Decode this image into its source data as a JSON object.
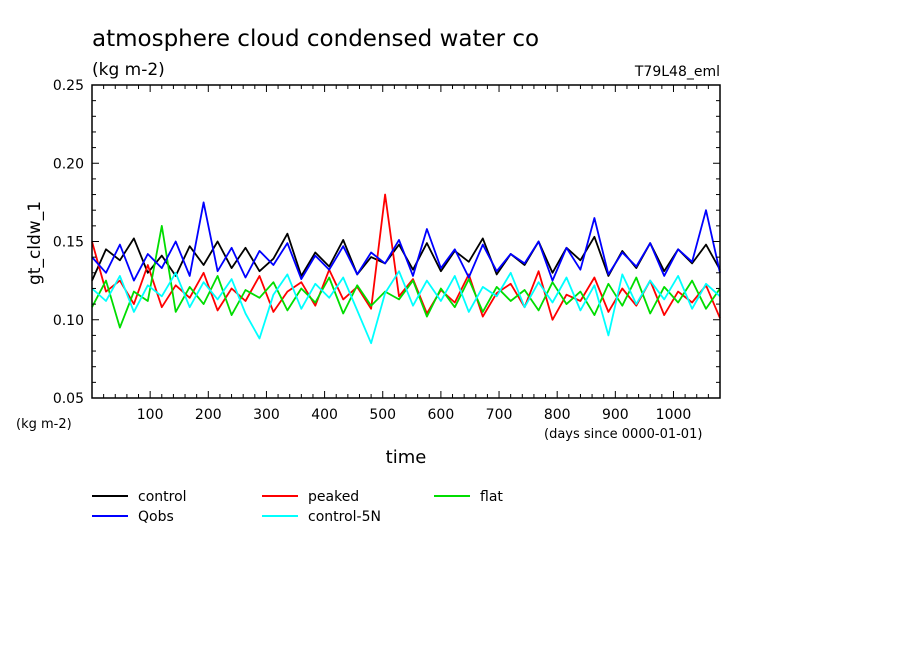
{
  "chart_data": {
    "type": "line",
    "title": "atmosphere cloud condensed water co",
    "subtitle": "(kg m-2)",
    "run_label": "T79L48_eml",
    "ylabel": "gt_cldw_1",
    "y_unit_label": "(kg m-2)",
    "xlabel": "time",
    "x_unit_label": "(days since 0000-01-01)",
    "xlim": [
      0,
      1080
    ],
    "ylim": [
      0.05,
      0.25
    ],
    "x_ticks": [
      100,
      200,
      300,
      400,
      500,
      600,
      700,
      800,
      900,
      1000
    ],
    "y_ticks": [
      "0.05",
      "0.10",
      "0.15",
      "0.20",
      "0.25"
    ],
    "grid": false,
    "legend_position": "below-plot",
    "series": [
      {
        "name": "control",
        "color": "#000000",
        "x": [
          0,
          24,
          48,
          72,
          96,
          120,
          144,
          168,
          192,
          216,
          240,
          264,
          288,
          312,
          336,
          360,
          384,
          408,
          432,
          456,
          480,
          504,
          528,
          552,
          576,
          600,
          624,
          648,
          672,
          696,
          720,
          744,
          768,
          792,
          816,
          840,
          864,
          888,
          912,
          936,
          960,
          984,
          1008,
          1032,
          1056,
          1080
        ],
        "values": [
          0.125,
          0.145,
          0.138,
          0.152,
          0.13,
          0.141,
          0.128,
          0.147,
          0.135,
          0.15,
          0.133,
          0.146,
          0.131,
          0.139,
          0.155,
          0.128,
          0.143,
          0.134,
          0.151,
          0.129,
          0.14,
          0.136,
          0.148,
          0.132,
          0.149,
          0.131,
          0.144,
          0.137,
          0.152,
          0.129,
          0.142,
          0.135,
          0.15,
          0.13,
          0.146,
          0.138,
          0.153,
          0.128,
          0.144,
          0.133,
          0.149,
          0.131,
          0.145,
          0.136,
          0.148,
          0.132
        ]
      },
      {
        "name": "peaked",
        "color": "#ff0000",
        "x": [
          0,
          24,
          48,
          72,
          96,
          120,
          144,
          168,
          192,
          216,
          240,
          264,
          288,
          312,
          336,
          360,
          384,
          408,
          432,
          456,
          480,
          504,
          528,
          552,
          576,
          600,
          624,
          648,
          672,
          696,
          720,
          744,
          768,
          792,
          816,
          840,
          864,
          888,
          912,
          936,
          960,
          984,
          1008,
          1032,
          1056,
          1080
        ],
        "values": [
          0.15,
          0.118,
          0.125,
          0.11,
          0.135,
          0.108,
          0.122,
          0.114,
          0.13,
          0.106,
          0.12,
          0.112,
          0.128,
          0.105,
          0.118,
          0.124,
          0.109,
          0.132,
          0.113,
          0.121,
          0.107,
          0.18,
          0.115,
          0.126,
          0.104,
          0.119,
          0.111,
          0.129,
          0.102,
          0.117,
          0.123,
          0.108,
          0.131,
          0.1,
          0.116,
          0.112,
          0.127,
          0.105,
          0.12,
          0.109,
          0.125,
          0.103,
          0.118,
          0.111,
          0.122,
          0.101
        ]
      },
      {
        "name": "flat",
        "color": "#00dd00",
        "x": [
          0,
          24,
          48,
          72,
          96,
          120,
          144,
          168,
          192,
          216,
          240,
          264,
          288,
          312,
          336,
          360,
          384,
          408,
          432,
          456,
          480,
          504,
          528,
          552,
          576,
          600,
          624,
          648,
          672,
          696,
          720,
          744,
          768,
          792,
          816,
          840,
          864,
          888,
          912,
          936,
          960,
          984,
          1008,
          1032,
          1056,
          1080
        ],
        "values": [
          0.108,
          0.125,
          0.095,
          0.118,
          0.112,
          0.16,
          0.105,
          0.121,
          0.11,
          0.128,
          0.103,
          0.119,
          0.114,
          0.124,
          0.106,
          0.12,
          0.111,
          0.127,
          0.104,
          0.122,
          0.109,
          0.118,
          0.113,
          0.125,
          0.102,
          0.12,
          0.108,
          0.126,
          0.105,
          0.121,
          0.112,
          0.119,
          0.106,
          0.124,
          0.11,
          0.118,
          0.103,
          0.123,
          0.109,
          0.127,
          0.104,
          0.121,
          0.111,
          0.125,
          0.107,
          0.12
        ]
      },
      {
        "name": "Qobs",
        "color": "#0000ff",
        "x": [
          0,
          24,
          48,
          72,
          96,
          120,
          144,
          168,
          192,
          216,
          240,
          264,
          288,
          312,
          336,
          360,
          384,
          408,
          432,
          456,
          480,
          504,
          528,
          552,
          576,
          600,
          624,
          648,
          672,
          696,
          720,
          744,
          768,
          792,
          816,
          840,
          864,
          888,
          912,
          936,
          960,
          984,
          1008,
          1032,
          1056,
          1080
        ],
        "values": [
          0.14,
          0.13,
          0.148,
          0.125,
          0.142,
          0.133,
          0.15,
          0.128,
          0.175,
          0.131,
          0.146,
          0.127,
          0.144,
          0.135,
          0.149,
          0.126,
          0.141,
          0.132,
          0.147,
          0.129,
          0.143,
          0.136,
          0.151,
          0.128,
          0.158,
          0.133,
          0.145,
          0.127,
          0.148,
          0.131,
          0.142,
          0.136,
          0.15,
          0.125,
          0.146,
          0.132,
          0.165,
          0.129,
          0.143,
          0.134,
          0.149,
          0.128,
          0.145,
          0.137,
          0.17,
          0.13
        ]
      },
      {
        "name": "control-5N",
        "color": "#00ffff",
        "x": [
          0,
          24,
          48,
          72,
          96,
          120,
          144,
          168,
          192,
          216,
          240,
          264,
          288,
          312,
          336,
          360,
          384,
          408,
          432,
          456,
          480,
          504,
          528,
          552,
          576,
          600,
          624,
          648,
          672,
          696,
          720,
          744,
          768,
          792,
          816,
          840,
          864,
          888,
          912,
          936,
          960,
          984,
          1008,
          1032,
          1056,
          1080
        ],
        "values": [
          0.12,
          0.112,
          0.128,
          0.105,
          0.122,
          0.115,
          0.13,
          0.108,
          0.124,
          0.113,
          0.126,
          0.104,
          0.088,
          0.116,
          0.129,
          0.107,
          0.123,
          0.114,
          0.127,
          0.106,
          0.085,
          0.117,
          0.131,
          0.109,
          0.125,
          0.112,
          0.128,
          0.105,
          0.121,
          0.115,
          0.13,
          0.108,
          0.124,
          0.111,
          0.127,
          0.106,
          0.122,
          0.09,
          0.129,
          0.11,
          0.125,
          0.113,
          0.128,
          0.107,
          0.123,
          0.115
        ]
      }
    ]
  }
}
